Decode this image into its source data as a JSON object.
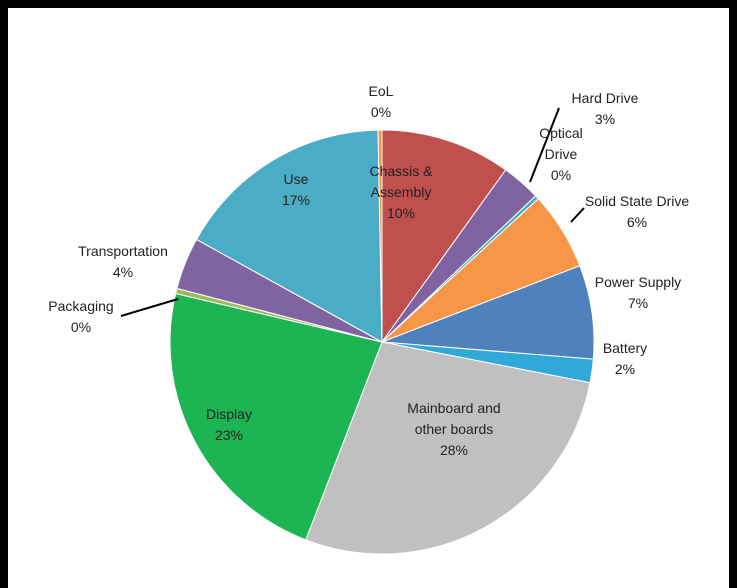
{
  "chart_data": {
    "type": "pie",
    "title": "",
    "start_angle_deg": 0,
    "direction": "clockwise",
    "slices": [
      {
        "label_lines": [
          "Chassis &",
          "Assembly"
        ],
        "pct_text": "10%",
        "value": 10.0,
        "color": "#c0504d"
      },
      {
        "label_lines": [
          "Hard Drive"
        ],
        "pct_text": "3%",
        "value": 3.0,
        "color": "#8064a2"
      },
      {
        "label_lines": [
          "Optical",
          "Drive"
        ],
        "pct_text": "0%",
        "value": 0.3,
        "color": "#4bacc6"
      },
      {
        "label_lines": [
          "Solid State Drive"
        ],
        "pct_text": "6%",
        "value": 6.0,
        "color": "#f79646"
      },
      {
        "label_lines": [
          "Power Supply"
        ],
        "pct_text": "7%",
        "value": 7.2,
        "color": "#4f81bd"
      },
      {
        "label_lines": [
          "Battery"
        ],
        "pct_text": "2%",
        "value": 1.8,
        "color": "#31a9d8"
      },
      {
        "label_lines": [
          "Mainboard and",
          "other boards"
        ],
        "pct_text": "28%",
        "value": 28.0,
        "color": "#c0c0c0"
      },
      {
        "label_lines": [
          "Display"
        ],
        "pct_text": "23%",
        "value": 23.0,
        "color": "#1db454"
      },
      {
        "label_lines": [
          "Packaging"
        ],
        "pct_text": "0%",
        "value": 0.4,
        "color": "#9bbb59"
      },
      {
        "label_lines": [
          "Transportation"
        ],
        "pct_text": "4%",
        "value": 4.0,
        "color": "#8064a2"
      },
      {
        "label_lines": [
          "Use"
        ],
        "pct_text": "17%",
        "value": 16.8,
        "color": "#4bacc6"
      },
      {
        "label_lines": [
          "EoL"
        ],
        "pct_text": "0%",
        "value": 0.3,
        "color": "#f79646"
      }
    ]
  }
}
